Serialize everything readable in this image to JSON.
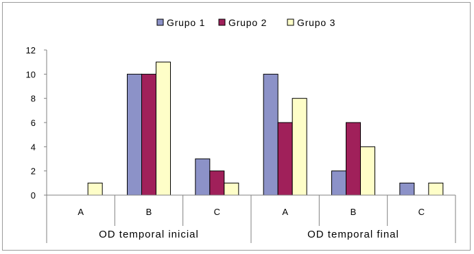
{
  "chart_data": {
    "type": "bar",
    "title": "",
    "xlabel": "",
    "ylabel": "",
    "ylim": [
      0,
      12
    ],
    "yticks": [
      0,
      2,
      4,
      6,
      8,
      10,
      12
    ],
    "grid": false,
    "legend_position": "top-center",
    "groups": [
      "OD temporal inicial",
      "OD temporal final"
    ],
    "categories": [
      "A",
      "B",
      "C",
      "A",
      "B",
      "C"
    ],
    "series": [
      {
        "name": "Grupo 1",
        "color": "#8c92c8",
        "values": [
          0,
          10,
          3,
          10,
          2,
          1
        ]
      },
      {
        "name": "Grupo 2",
        "color": "#a0205a",
        "values": [
          0,
          10,
          2,
          6,
          6,
          0
        ]
      },
      {
        "name": "Grupo 3",
        "color": "#fefec8",
        "values": [
          1,
          11,
          1,
          8,
          4,
          1
        ]
      }
    ]
  }
}
